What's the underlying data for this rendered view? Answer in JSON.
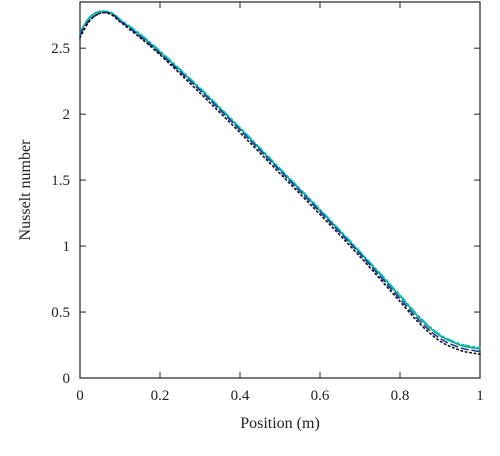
{
  "chart_data": {
    "type": "line",
    "title": "",
    "xlabel": "Position (m)",
    "ylabel": "Nusselt number",
    "xlim": [
      0,
      1
    ],
    "ylim": [
      0,
      2.85
    ],
    "xticks": [
      0,
      0.2,
      0.4,
      0.6,
      0.8,
      1
    ],
    "xtick_labels": [
      "0",
      "0.2",
      "0.4",
      "0.6",
      "0.8",
      "1"
    ],
    "yticks": [
      0,
      0.5,
      1,
      1.5,
      2,
      2.5
    ],
    "ytick_labels": [
      "0",
      "0.5",
      "1",
      "1.5",
      "2",
      "2.5"
    ],
    "grid": false,
    "series": [
      {
        "color": "#1a9b6b",
        "style": "solid",
        "x": [
          0,
          0.02,
          0.04,
          0.06,
          0.08,
          0.1,
          0.15,
          0.2,
          0.3,
          0.4,
          0.5,
          0.6,
          0.7,
          0.8,
          0.85,
          0.9,
          0.95,
          0.98,
          1.0
        ],
        "y": [
          2.62,
          2.72,
          2.77,
          2.78,
          2.76,
          2.71,
          2.6,
          2.47,
          2.19,
          1.89,
          1.58,
          1.27,
          0.95,
          0.62,
          0.45,
          0.32,
          0.25,
          0.23,
          0.22
        ]
      },
      {
        "color": "#00c8d2",
        "style": "dashdot",
        "x": [
          0,
          0.02,
          0.04,
          0.06,
          0.08,
          0.1,
          0.15,
          0.2,
          0.3,
          0.4,
          0.5,
          0.6,
          0.7,
          0.8,
          0.85,
          0.9,
          0.95,
          0.98,
          1.0
        ],
        "y": [
          2.6,
          2.71,
          2.76,
          2.78,
          2.77,
          2.72,
          2.61,
          2.48,
          2.2,
          1.9,
          1.59,
          1.28,
          0.96,
          0.63,
          0.46,
          0.33,
          0.26,
          0.24,
          0.23
        ]
      },
      {
        "color": "#1a2f9e",
        "style": "dashed",
        "x": [
          0,
          0.02,
          0.04,
          0.06,
          0.08,
          0.1,
          0.15,
          0.2,
          0.3,
          0.4,
          0.5,
          0.6,
          0.7,
          0.8,
          0.85,
          0.9,
          0.95,
          0.98,
          1.0
        ],
        "y": [
          2.6,
          2.7,
          2.75,
          2.77,
          2.76,
          2.71,
          2.59,
          2.46,
          2.18,
          1.88,
          1.57,
          1.26,
          0.94,
          0.6,
          0.43,
          0.3,
          0.23,
          0.21,
          0.2
        ]
      },
      {
        "color": "#111111",
        "style": "dotted",
        "x": [
          0,
          0.02,
          0.04,
          0.06,
          0.08,
          0.1,
          0.15,
          0.2,
          0.3,
          0.4,
          0.5,
          0.6,
          0.7,
          0.8,
          0.85,
          0.9,
          0.95,
          0.98,
          1.0
        ],
        "y": [
          2.58,
          2.69,
          2.75,
          2.77,
          2.75,
          2.7,
          2.58,
          2.45,
          2.16,
          1.86,
          1.55,
          1.24,
          0.92,
          0.58,
          0.41,
          0.28,
          0.21,
          0.19,
          0.18
        ]
      }
    ]
  }
}
